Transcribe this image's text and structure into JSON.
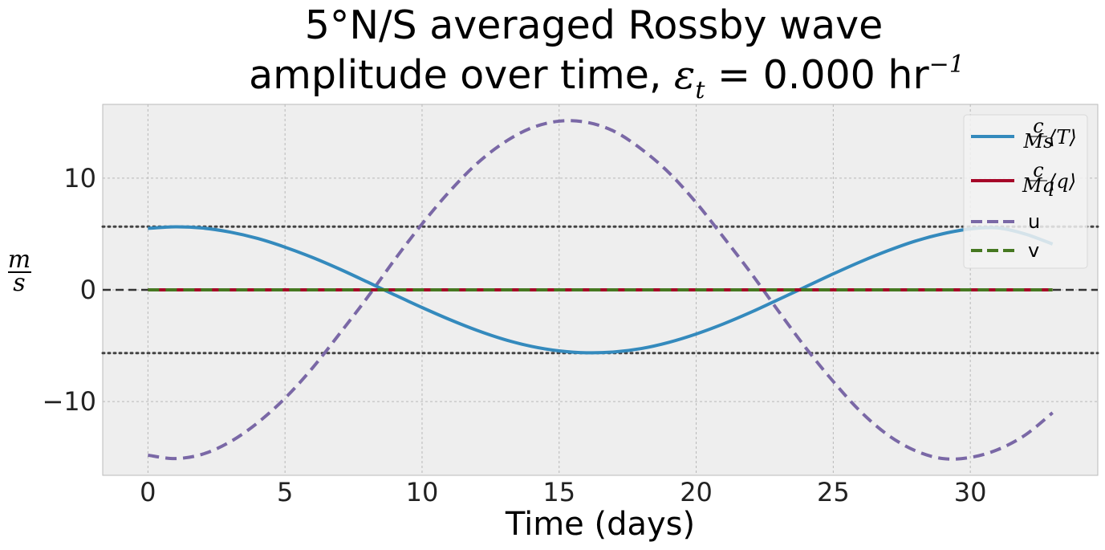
{
  "chart_data": {
    "type": "line",
    "title_line1": "5°N/S averaged Rossby wave",
    "title_line2_prefix": "amplitude over time, ",
    "title_line2_eps": "ε",
    "title_line2_eps_sub": "t",
    "title_line2_mid": " = 0.000 hr",
    "title_line2_sup": "−1",
    "xlabel": "Time (days)",
    "ylabel_num": "m",
    "ylabel_den": "s",
    "xlim": [
      -1.65,
      34.65
    ],
    "ylim": [
      -16.6,
      16.6
    ],
    "xticks": [
      0,
      5,
      10,
      15,
      20,
      25,
      30
    ],
    "yticks": [
      -10,
      0,
      10
    ],
    "ytick_labels": [
      "−10",
      "0",
      "10"
    ],
    "grid": true,
    "legend_position": "top-right",
    "reference_lines": [
      {
        "y": 5.66,
        "style": "dotted",
        "color": "#444444"
      },
      {
        "y": -5.66,
        "style": "dotted",
        "color": "#444444"
      },
      {
        "y": 0,
        "style": "dashed",
        "color": "#333333"
      }
    ],
    "x": [
      0,
      1,
      2,
      3,
      4,
      5,
      6,
      7,
      8,
      9,
      10,
      11,
      12,
      13,
      14,
      15,
      16,
      17,
      18,
      19,
      20,
      21,
      22,
      23,
      24,
      25,
      26,
      27,
      28,
      29,
      30,
      31,
      32,
      33
    ],
    "series": [
      {
        "name": "c/M_s ⟨T⟩",
        "legend_num": "c",
        "legend_den": "Ms",
        "legend_tail": "⟨T⟩",
        "color": "#348ABD",
        "style": "solid",
        "values": [
          5.5,
          5.64,
          5.53,
          5.17,
          4.6,
          3.82,
          2.9,
          1.85,
          0.71,
          -0.45,
          -1.58,
          -2.65,
          -3.62,
          -4.44,
          -5.06,
          -5.46,
          -5.63,
          -5.56,
          -5.25,
          -4.7,
          -3.95,
          -3.04,
          -2.0,
          -0.87,
          0.28,
          1.43,
          2.52,
          3.51,
          4.37,
          5.02,
          5.45,
          5.54,
          5.0,
          4.1
        ]
      },
      {
        "name": "c/M_q ⟨q⟩",
        "legend_num": "c",
        "legend_den": "Mq",
        "legend_tail": "⟨q⟩",
        "color": "#A60628",
        "style": "solid",
        "values": [
          0,
          0,
          0,
          0,
          0,
          0,
          0,
          0,
          0,
          0,
          0,
          0,
          0,
          0,
          0,
          0,
          0,
          0,
          0,
          0,
          0,
          0,
          0,
          0,
          0,
          0,
          0,
          0,
          0,
          0,
          0,
          0,
          0,
          0
        ]
      },
      {
        "name": "u",
        "legend_label": "u",
        "color": "#7A68A6",
        "style": "dashed",
        "values": [
          -14.8,
          -15.1,
          -14.7,
          -13.6,
          -11.9,
          -9.7,
          -7.0,
          -3.9,
          -0.7,
          2.7,
          5.9,
          8.8,
          11.3,
          13.2,
          14.5,
          15.1,
          15.0,
          14.2,
          12.6,
          10.5,
          7.8,
          4.7,
          1.5,
          -1.9,
          -5.2,
          -8.2,
          -10.9,
          -13.0,
          -14.4,
          -15.1,
          -15.0,
          -14.3,
          -13.0,
          -11.0
        ]
      },
      {
        "name": "v",
        "legend_label": "v",
        "color": "#467821",
        "style": "dashed",
        "values": [
          0,
          0,
          0,
          0,
          0,
          0,
          0,
          0,
          0,
          0,
          0,
          0,
          0,
          0,
          0,
          0,
          0,
          0,
          0,
          0,
          0,
          0,
          0,
          0,
          0,
          0,
          0,
          0,
          0,
          0,
          0,
          0,
          0,
          0
        ]
      }
    ]
  }
}
